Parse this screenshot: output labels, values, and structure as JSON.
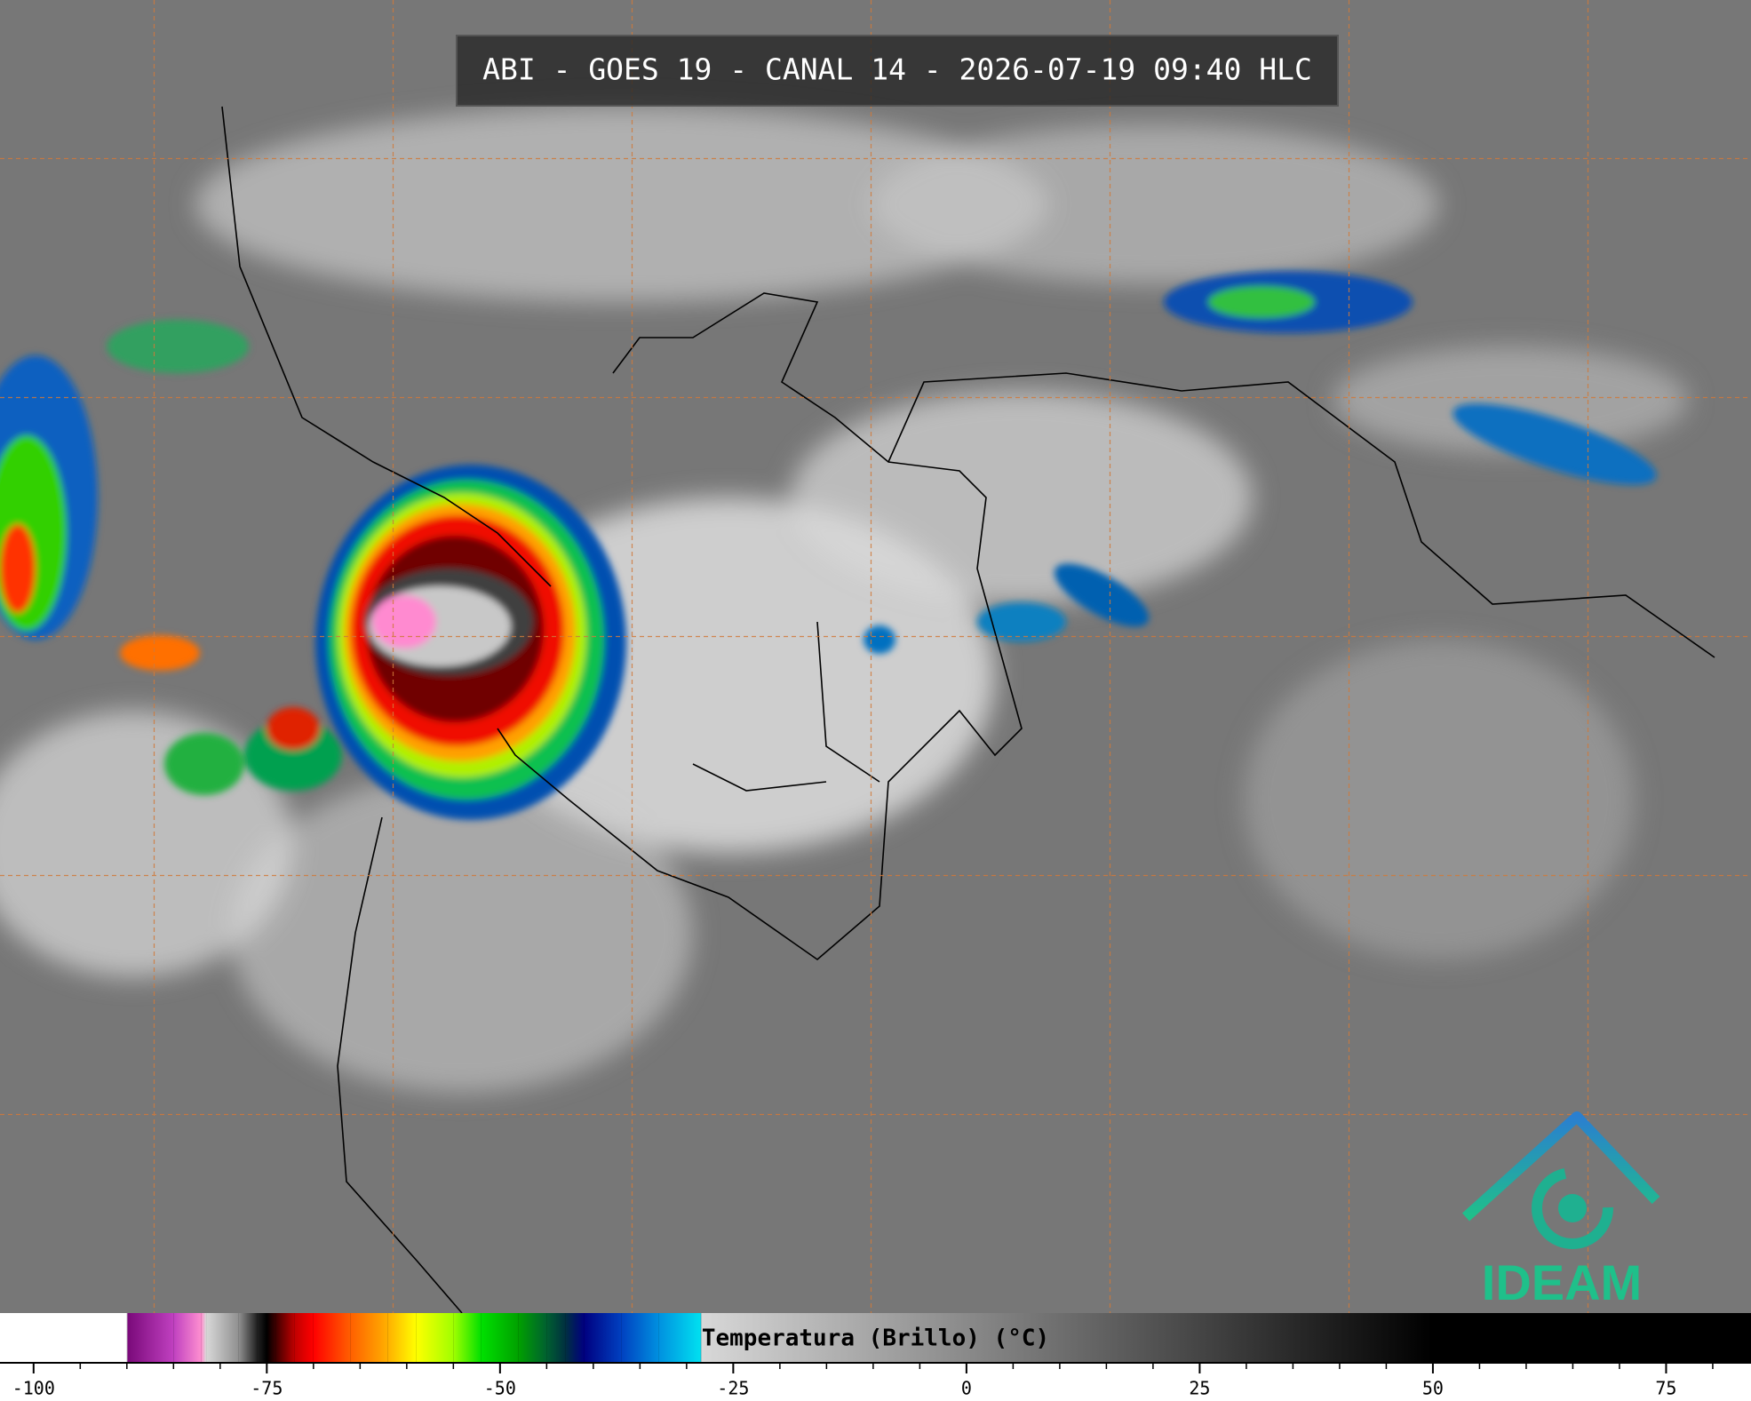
{
  "title": "ABI - GOES 19 - CANAL 14 - 2026-07-19 09:40 HLC",
  "colorbar": {
    "label": "Temperatura (Brillo) (°C)",
    "lim": [
      -103.6,
      84.1
    ],
    "ticks": [
      -100,
      -75,
      -50,
      -25,
      0,
      25,
      50,
      75
    ],
    "minor_ticks": [
      -95,
      -90,
      -85,
      -80,
      -70,
      -65,
      -60,
      -55,
      -45,
      -40,
      -35,
      -30,
      -20,
      -15,
      -10,
      -5,
      5,
      10,
      15,
      20,
      30,
      35,
      40,
      45,
      55,
      60,
      65,
      70,
      80
    ],
    "colormap": [
      {
        "value": -103.6,
        "color": "#ffffff"
      },
      {
        "value": -90,
        "color": "#ffffff"
      },
      {
        "value": -89.9,
        "color": "#7a0a7a"
      },
      {
        "value": -85,
        "color": "#c040c0"
      },
      {
        "value": -82,
        "color": "#ff90d0"
      },
      {
        "value": -81.5,
        "color": "#d8d8d8"
      },
      {
        "value": -78,
        "color": "#909090"
      },
      {
        "value": -76,
        "color": "#202020"
      },
      {
        "value": -75,
        "color": "#000000"
      },
      {
        "value": -74,
        "color": "#400000"
      },
      {
        "value": -72,
        "color": "#c00000"
      },
      {
        "value": -70,
        "color": "#ff0000"
      },
      {
        "value": -66,
        "color": "#ff6000"
      },
      {
        "value": -62,
        "color": "#ffb000"
      },
      {
        "value": -59,
        "color": "#ffff00"
      },
      {
        "value": -55,
        "color": "#a0ff00"
      },
      {
        "value": -52,
        "color": "#00e000"
      },
      {
        "value": -48,
        "color": "#00a000"
      },
      {
        "value": -45,
        "color": "#006030"
      },
      {
        "value": -43,
        "color": "#003040"
      },
      {
        "value": -41,
        "color": "#000080"
      },
      {
        "value": -37,
        "color": "#0040c0"
      },
      {
        "value": -33,
        "color": "#0090e0"
      },
      {
        "value": -28.5,
        "color": "#00e0f0"
      },
      {
        "value": -28.4,
        "color": "#d8d8d8"
      },
      {
        "value": 50,
        "color": "#000000"
      },
      {
        "value": 84.1,
        "color": "#000000"
      }
    ]
  },
  "logo": {
    "text": "IDEAM"
  }
}
